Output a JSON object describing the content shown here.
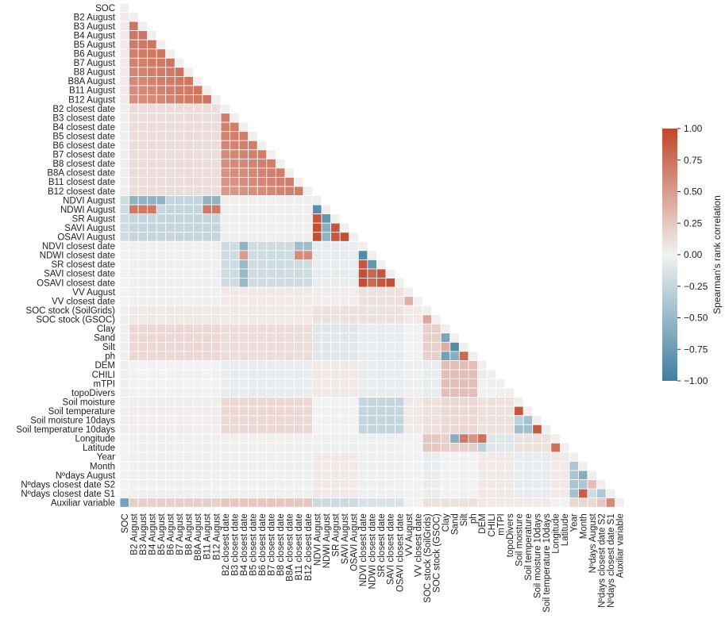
{
  "chart_data": {
    "type": "heatmap",
    "layout": "lower-triangle",
    "categories": [
      "SOC",
      "B2 August",
      "B3 August",
      "B4 August",
      "B5 August",
      "B6 August",
      "B7 August",
      "B8 August",
      "B8A August",
      "B11 August",
      "B12 August",
      "B2 closest date",
      "B3 closest date",
      "B4 closest date",
      "B5 closest date",
      "B6 closest date",
      "B7 closest date",
      "B8 closest date",
      "B8A closest date",
      "B11 closest date",
      "B12 closest date",
      "NDVI August",
      "NDWI August",
      "SR August",
      "SAVI August",
      "OSAVI August",
      "NDVI closest date",
      "NDWI closest date",
      "SR closest date",
      "SAVI closest date",
      "OSAVI  closest date",
      "VV August",
      "VV closest date",
      "SOC stock (SoilGrids)",
      "SOC stock (GSOC)",
      "Clay",
      "Sand",
      "Silt",
      "ph",
      "DEM",
      "CHILI",
      "mTPI",
      "topoDivers",
      "Soil moisture",
      "Soil temperature",
      "Soil moisture 10days",
      "Soil temperature 10days",
      "Longitude",
      "Latitude",
      "Year",
      "Month",
      "Nºdays August",
      "Nºdays closest date S2",
      "Nºdays closest date S1",
      "Auxiliar variable"
    ],
    "colorbar": {
      "label": "Spearman's rank correlation",
      "vmin": -1.0,
      "vmax": 1.0,
      "ticks": [
        "1.00",
        "0.75",
        "0.50",
        "0.25",
        "0.00",
        "−0.25",
        "−0.50",
        "−0.75",
        "−1.00"
      ],
      "low_color": "#3f7f9f",
      "mid_color": "#f2f2f2",
      "high_color": "#c0462a"
    },
    "note_values": "values derived per group-pair (approximate estimates read from colour)",
    "groups": [
      0,
      1,
      1,
      1,
      1,
      1,
      1,
      1,
      1,
      1,
      1,
      2,
      2,
      2,
      2,
      2,
      2,
      2,
      2,
      2,
      2,
      3,
      3,
      3,
      3,
      3,
      4,
      4,
      4,
      4,
      4,
      5,
      5,
      6,
      6,
      7,
      7,
      7,
      7,
      8,
      8,
      8,
      8,
      9,
      9,
      9,
      9,
      10,
      10,
      11,
      11,
      11,
      11,
      11,
      12
    ],
    "group_corr": [
      [
        1.0,
        0.05,
        0.03,
        -0.2,
        0.0,
        0.0,
        0.02,
        0.02,
        -0.03,
        -0.03,
        0.0,
        0.0,
        0.02
      ],
      [
        0.05,
        0.75,
        0.12,
        -0.25,
        -0.03,
        -0.02,
        0.06,
        0.15,
        0.0,
        0.03,
        0.02,
        -0.03,
        0.2
      ],
      [
        0.03,
        0.12,
        0.7,
        0.02,
        -0.2,
        0.05,
        0.05,
        0.12,
        -0.05,
        0.15,
        0.02,
        -0.02,
        0.25
      ],
      [
        -0.2,
        -0.25,
        0.02,
        0.85,
        -0.05,
        0.03,
        0.1,
        -0.1,
        0.05,
        0.0,
        -0.02,
        0.05,
        -0.22
      ],
      [
        0.0,
        -0.03,
        -0.2,
        -0.05,
        0.85,
        0.1,
        0.1,
        -0.05,
        -0.05,
        -0.25,
        -0.02,
        -0.03,
        -0.15
      ],
      [
        0.0,
        -0.02,
        0.05,
        0.03,
        0.1,
        0.4,
        0.05,
        0.0,
        -0.02,
        0.05,
        0.0,
        0.0,
        0.0
      ],
      [
        0.02,
        0.06,
        0.05,
        0.1,
        0.1,
        0.05,
        0.45,
        0.2,
        -0.05,
        0.1,
        0.25,
        -0.05,
        0.1
      ],
      [
        0.02,
        0.15,
        0.12,
        -0.1,
        -0.05,
        0.0,
        0.2,
        -0.65,
        0.3,
        0.15,
        0.2,
        0.0,
        0.1
      ],
      [
        -0.03,
        0.0,
        -0.05,
        0.05,
        -0.05,
        -0.02,
        -0.05,
        0.3,
        0.05,
        0.1,
        -0.1,
        0.05,
        0.05
      ],
      [
        -0.03,
        0.03,
        0.15,
        0.0,
        -0.25,
        0.05,
        0.1,
        0.15,
        0.1,
        -0.4,
        0.1,
        -0.05,
        0.05
      ],
      [
        0.0,
        0.02,
        0.02,
        -0.02,
        -0.02,
        0.0,
        0.25,
        0.2,
        -0.1,
        0.1,
        0.6,
        0.05,
        0.0
      ],
      [
        0.0,
        -0.03,
        -0.02,
        0.05,
        -0.03,
        0.0,
        -0.05,
        0.0,
        0.05,
        -0.05,
        0.05,
        -0.35,
        0.15
      ],
      [
        0.02,
        0.2,
        0.25,
        -0.22,
        -0.15,
        0.0,
        0.1,
        0.1,
        0.05,
        0.05,
        0.0,
        0.15,
        1.0
      ]
    ],
    "overrides": [
      [
        21,
        1,
        -0.55
      ],
      [
        21,
        2,
        -0.55
      ],
      [
        21,
        3,
        -0.55
      ],
      [
        21,
        4,
        -0.55
      ],
      [
        21,
        9,
        -0.55
      ],
      [
        21,
        10,
        -0.55
      ],
      [
        22,
        1,
        0.7
      ],
      [
        22,
        2,
        0.7
      ],
      [
        22,
        3,
        0.7
      ],
      [
        22,
        9,
        0.7
      ],
      [
        22,
        10,
        0.7
      ],
      [
        22,
        21,
        -0.85
      ],
      [
        23,
        21,
        0.9
      ],
      [
        23,
        22,
        -0.8
      ],
      [
        24,
        21,
        0.95
      ],
      [
        24,
        22,
        -0.6
      ],
      [
        24,
        23,
        0.9
      ],
      [
        25,
        21,
        0.95
      ],
      [
        25,
        22,
        -0.55
      ],
      [
        25,
        23,
        0.9
      ],
      [
        25,
        24,
        0.95
      ],
      [
        26,
        13,
        -0.55
      ],
      [
        26,
        19,
        -0.45
      ],
      [
        26,
        20,
        -0.45
      ],
      [
        27,
        13,
        0.5
      ],
      [
        27,
        19,
        0.6
      ],
      [
        27,
        20,
        0.6
      ],
      [
        28,
        13,
        -0.5
      ],
      [
        29,
        13,
        -0.5
      ],
      [
        30,
        13,
        -0.5
      ],
      [
        27,
        26,
        -0.9
      ],
      [
        28,
        26,
        0.9
      ],
      [
        28,
        27,
        -0.8
      ],
      [
        29,
        26,
        0.95
      ],
      [
        29,
        28,
        0.9
      ],
      [
        30,
        26,
        0.95
      ],
      [
        30,
        28,
        0.9
      ],
      [
        30,
        29,
        0.95
      ],
      [
        37,
        36,
        -0.9
      ],
      [
        37,
        35,
        0.4
      ],
      [
        38,
        36,
        -0.6
      ],
      [
        38,
        37,
        0.8
      ],
      [
        39,
        36,
        0.3
      ],
      [
        40,
        39,
        -0.05
      ],
      [
        44,
        43,
        0.9
      ],
      [
        46,
        45,
        0.9
      ],
      [
        45,
        43,
        -0.3
      ],
      [
        47,
        36,
        -0.6
      ],
      [
        47,
        37,
        0.7
      ],
      [
        47,
        38,
        0.55
      ],
      [
        47,
        39,
        0.75
      ],
      [
        48,
        47,
        0.75
      ],
      [
        48,
        39,
        -0.3
      ],
      [
        51,
        50,
        -0.6
      ],
      [
        52,
        51,
        0.3
      ],
      [
        53,
        50,
        0.85
      ],
      [
        53,
        51,
        -0.2
      ],
      [
        54,
        53,
        0.6
      ],
      [
        54,
        0,
        -0.7
      ],
      [
        54,
        52,
        0.25
      ]
    ]
  }
}
